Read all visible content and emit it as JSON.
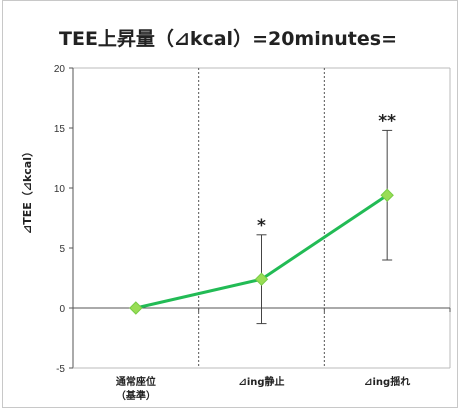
{
  "chart_data": {
    "type": "line",
    "title": "TEE上昇量（⊿kcal）=20minutes=",
    "xlabel": "",
    "ylabel": "⊿TEE（⊿kcal）",
    "ylim": [
      -5,
      20
    ],
    "yticks": [
      "-5",
      "0",
      "5",
      "10",
      "15",
      "20"
    ],
    "categories": [
      "通常座位\n（基準）",
      "⊿ing静止",
      "⊿ing揺れ"
    ],
    "series": [
      {
        "values": [
          0,
          2.4,
          9.4
        ],
        "error_low": [
          0,
          -1.3,
          4.0
        ],
        "error_high": [
          0,
          6.1,
          14.8
        ],
        "significance": [
          "",
          "*",
          "**"
        ]
      }
    ],
    "grid": "vertical-dashed",
    "legend": "none",
    "colors": {
      "line": "#22bb55",
      "marker": "#99dd55",
      "error": "#444444",
      "axis": "#555555"
    }
  }
}
